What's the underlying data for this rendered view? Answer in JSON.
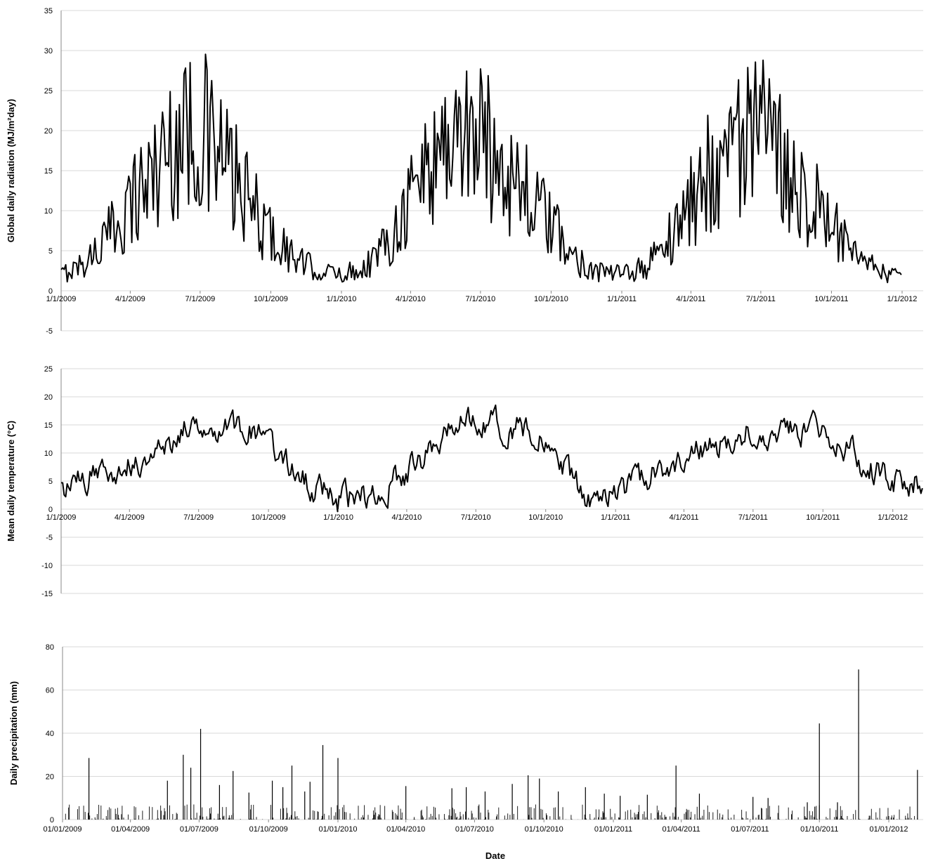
{
  "chart_data": [
    {
      "id": "radiation",
      "type": "line",
      "ylabel": "Global daily radiation (MJ/m²day)",
      "ylim": [
        -5,
        35
      ],
      "yticks": [
        -5,
        0,
        5,
        10,
        15,
        20,
        25,
        30,
        35
      ],
      "x_start": "2009-01-01",
      "x_end": "2012-01-01",
      "x_ticks": [
        {
          "date": "2009-01-01",
          "label": "1/1/2009"
        },
        {
          "date": "2009-04-01",
          "label": "4/1/2009"
        },
        {
          "date": "2009-07-01",
          "label": "7/1/2009"
        },
        {
          "date": "2009-10-01",
          "label": "10/1/2009"
        },
        {
          "date": "2010-01-01",
          "label": "1/1/2010"
        },
        {
          "date": "2010-04-01",
          "label": "4/1/2010"
        },
        {
          "date": "2010-07-01",
          "label": "7/1/2010"
        },
        {
          "date": "2010-10-01",
          "label": "10/1/2010"
        },
        {
          "date": "2011-01-01",
          "label": "1/1/2011"
        },
        {
          "date": "2011-04-01",
          "label": "4/1/2011"
        },
        {
          "date": "2011-07-01",
          "label": "7/1/2011"
        },
        {
          "date": "2011-10-01",
          "label": "10/1/2011"
        },
        {
          "date": "2012-01-01",
          "label": "1/1/2012"
        }
      ],
      "x_tick_axis_value": 0,
      "grid": true,
      "series": [
        {
          "x": [
            "2009-01-01",
            "2009-02-01",
            "2009-03-01",
            "2009-04-01",
            "2009-05-01",
            "2009-06-01",
            "2009-07-01",
            "2009-08-01",
            "2009-09-01",
            "2009-10-01",
            "2009-11-01",
            "2009-12-01",
            "2010-01-01",
            "2010-02-01",
            "2010-03-01",
            "2010-04-01",
            "2010-05-01",
            "2010-06-01",
            "2010-07-01",
            "2010-08-01",
            "2010-09-01",
            "2010-10-01",
            "2010-11-01",
            "2010-12-01",
            "2011-01-01",
            "2011-02-01",
            "2011-03-01",
            "2011-04-01",
            "2011-05-01",
            "2011-06-01",
            "2011-07-01",
            "2011-08-01",
            "2011-09-01",
            "2011-10-01",
            "2011-11-01",
            "2011-12-01",
            "2012-01-01"
          ],
          "values": [
            2,
            3.5,
            6.5,
            11,
            15,
            19,
            20,
            16,
            11,
            7,
            4,
            2.5,
            2,
            3,
            6,
            12,
            17,
            20,
            19,
            16,
            12,
            8,
            4,
            2.5,
            2,
            3,
            6,
            11,
            16,
            19,
            19,
            16,
            12,
            8,
            4,
            2.5,
            1.5
          ]
        }
      ]
    },
    {
      "id": "temperature",
      "type": "line",
      "ylabel": "Mean daily temperature (°C)",
      "ylim": [
        -15,
        25
      ],
      "yticks": [
        -15,
        -10,
        -5,
        0,
        5,
        10,
        15,
        20,
        25
      ],
      "x_start": "2009-01-01",
      "x_end": "2012-02-10",
      "x_ticks": [
        {
          "date": "2009-01-01",
          "label": "1/1/2009"
        },
        {
          "date": "2009-04-01",
          "label": "4/1/2009"
        },
        {
          "date": "2009-07-01",
          "label": "7/1/2009"
        },
        {
          "date": "2009-10-01",
          "label": "10/1/2009"
        },
        {
          "date": "2010-01-01",
          "label": "1/1/2010"
        },
        {
          "date": "2010-04-01",
          "label": "4/1/2010"
        },
        {
          "date": "2010-07-01",
          "label": "7/1/2010"
        },
        {
          "date": "2010-10-01",
          "label": "10/1/2010"
        },
        {
          "date": "2011-01-01",
          "label": "1/1/2011"
        },
        {
          "date": "2011-04-01",
          "label": "4/1/2011"
        },
        {
          "date": "2011-07-01",
          "label": "7/1/2011"
        },
        {
          "date": "2011-10-01",
          "label": "10/1/2011"
        },
        {
          "date": "2012-01-01",
          "label": "1/1/2012"
        }
      ],
      "x_tick_axis_value": 0,
      "grid": true,
      "series": [
        {
          "x": [
            "2009-01-01",
            "2009-02-01",
            "2009-03-01",
            "2009-04-01",
            "2009-05-01",
            "2009-06-01",
            "2009-07-01",
            "2009-08-01",
            "2009-09-01",
            "2009-10-01",
            "2009-11-01",
            "2009-12-01",
            "2010-01-01",
            "2010-02-01",
            "2010-03-01",
            "2010-04-01",
            "2010-05-01",
            "2010-06-01",
            "2010-07-01",
            "2010-08-01",
            "2010-09-01",
            "2010-10-01",
            "2010-11-01",
            "2010-12-01",
            "2011-01-01",
            "2011-02-01",
            "2011-03-01",
            "2011-04-01",
            "2011-05-01",
            "2011-06-01",
            "2011-07-01",
            "2011-08-01",
            "2011-09-01",
            "2011-10-01",
            "2011-11-01",
            "2011-12-01",
            "2012-01-01",
            "2012-02-01"
          ],
          "values": [
            3,
            5,
            7,
            8,
            9,
            13,
            16,
            15,
            14,
            12,
            7,
            4,
            1.5,
            2,
            3,
            7,
            10,
            15,
            16,
            15,
            14,
            11,
            6,
            1,
            2,
            5,
            7,
            9,
            11,
            12,
            14,
            14,
            14,
            14,
            11,
            7,
            5,
            5
          ]
        }
      ]
    },
    {
      "id": "precipitation",
      "type": "bar",
      "ylabel": "Daily precipitation (mm)",
      "xlabel": "Date",
      "ylim": [
        0,
        80
      ],
      "yticks": [
        0,
        20,
        40,
        60,
        80
      ],
      "x_start": "2009-01-01",
      "x_end": "2012-02-10",
      "x_ticks": [
        {
          "date": "2009-01-01",
          "label": "01/01/2009"
        },
        {
          "date": "2009-04-01",
          "label": "01/04/2009"
        },
        {
          "date": "2009-07-01",
          "label": "01/07/2009"
        },
        {
          "date": "2009-10-01",
          "label": "01/10/2009"
        },
        {
          "date": "2010-01-01",
          "label": "01/01/2010"
        },
        {
          "date": "2010-04-01",
          "label": "01/04/2010"
        },
        {
          "date": "2010-07-01",
          "label": "01/07/2010"
        },
        {
          "date": "2010-10-01",
          "label": "01/10/2010"
        },
        {
          "date": "2011-01-01",
          "label": "01/01/2011"
        },
        {
          "date": "2011-04-01",
          "label": "01/04/2011"
        },
        {
          "date": "2011-07-01",
          "label": "01/07/2011"
        },
        {
          "date": "2011-10-01",
          "label": "01/10/2011"
        },
        {
          "date": "2012-01-01",
          "label": "01/01/2012"
        }
      ],
      "x_tick_axis_value": 0,
      "grid": true,
      "series": [
        {
          "x": [
            "2009-02-05",
            "2009-05-20",
            "2009-06-10",
            "2009-06-20",
            "2009-07-03",
            "2009-07-28",
            "2009-08-15",
            "2009-09-05",
            "2009-10-06",
            "2009-10-20",
            "2009-11-01",
            "2009-11-18",
            "2009-11-25",
            "2009-12-12",
            "2010-01-01",
            "2010-04-01",
            "2010-06-01",
            "2010-06-20",
            "2010-07-15",
            "2010-08-20",
            "2010-09-10",
            "2010-09-25",
            "2010-10-20",
            "2010-11-25",
            "2010-12-20",
            "2011-01-10",
            "2011-02-15",
            "2011-03-25",
            "2011-04-25",
            "2011-07-05",
            "2011-07-25",
            "2011-09-15",
            "2011-09-25",
            "2011-10-01",
            "2011-10-25",
            "2011-11-22",
            "2012-02-08"
          ],
          "values": [
            28.5,
            18,
            30,
            24,
            42,
            16,
            22.5,
            12.5,
            18,
            15,
            25,
            13,
            17.5,
            34.5,
            28.5,
            15.5,
            14.5,
            15,
            13,
            16.5,
            20.5,
            19,
            13,
            15,
            12,
            11,
            11.5,
            25,
            12,
            10.5,
            10,
            8,
            6,
            44.5,
            8,
            69.5,
            23
          ]
        }
      ]
    }
  ]
}
